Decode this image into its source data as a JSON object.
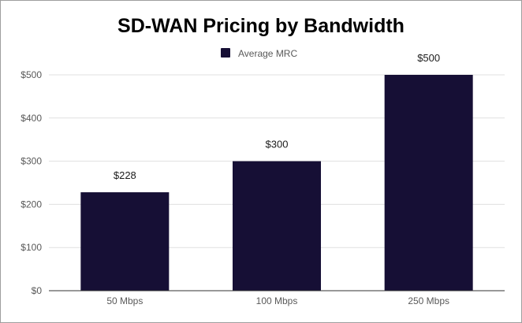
{
  "chart_data": {
    "type": "bar",
    "title": "SD-WAN Pricing by Bandwidth",
    "categories": [
      "50 Mbps",
      "100 Mbps",
      "250 Mbps"
    ],
    "series": [
      {
        "name": "Average MRC",
        "values": [
          228,
          300,
          500
        ],
        "color": "#160f35"
      }
    ],
    "data_labels": [
      "$228",
      "$300",
      "$500"
    ],
    "y_ticks": [
      0,
      100,
      200,
      300,
      400,
      500
    ],
    "y_tick_labels": [
      "$0",
      "$100",
      "$200",
      "$300",
      "$400",
      "$500"
    ],
    "ylim": [
      0,
      500
    ],
    "xlabel": "",
    "ylabel": "",
    "grid": true,
    "legend": "top-center",
    "gridline_color": "#e0e0e0",
    "axis_color": "#333333"
  }
}
